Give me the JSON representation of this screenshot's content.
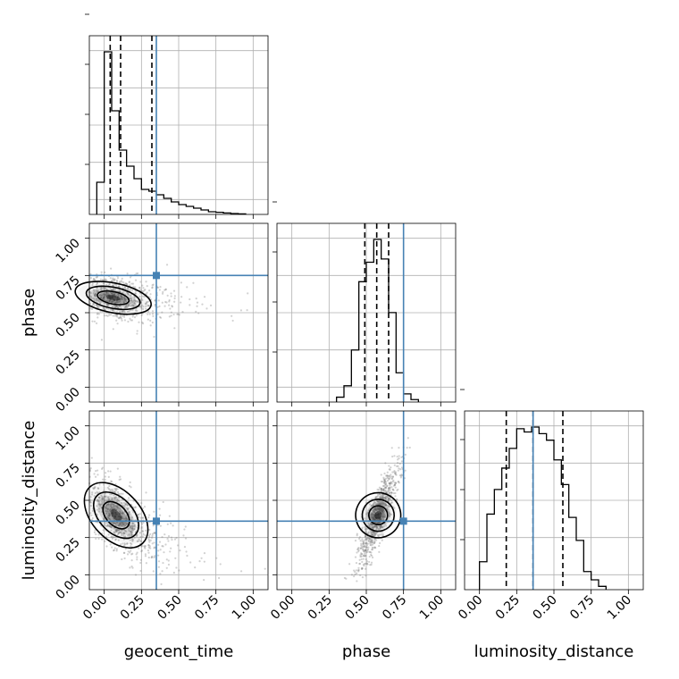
{
  "chart_data": {
    "type": "corner",
    "parameters": [
      "geocent_time",
      "phase",
      "luminosity_distance"
    ],
    "axis_range": [
      -0.1,
      1.1
    ],
    "ticks": [
      0.0,
      0.25,
      0.5,
      0.75,
      1.0
    ],
    "tick_labels": [
      "0.00",
      "0.25",
      "0.50",
      "0.75",
      "1.00"
    ],
    "grid": true,
    "truth": {
      "geocent_time": 0.35,
      "phase": 0.75,
      "luminosity_distance": 0.36
    },
    "colors": {
      "truth": "#4682b4",
      "hist": "#000000",
      "grid": "#b0b0b0",
      "points": "#7f7f7f"
    },
    "histograms": {
      "geocent_time": {
        "bin_edges": [
          -0.05,
          0.0,
          0.05,
          0.1,
          0.15,
          0.2,
          0.25,
          0.3,
          0.35,
          0.4,
          0.45,
          0.5,
          0.55,
          0.6,
          0.65,
          0.7,
          0.75,
          0.8,
          0.85,
          0.9,
          0.95
        ],
        "counts": [
          0.18,
          0.91,
          0.58,
          0.36,
          0.27,
          0.2,
          0.14,
          0.13,
          0.11,
          0.09,
          0.07,
          0.055,
          0.045,
          0.035,
          0.025,
          0.015,
          0.012,
          0.008,
          0.005,
          0.003
        ],
        "quantiles": [
          0.04,
          0.11,
          0.32
        ]
      },
      "phase": {
        "bin_edges": [
          0.3,
          0.35,
          0.4,
          0.45,
          0.5,
          0.55,
          0.6,
          0.65,
          0.7,
          0.75,
          0.8,
          0.85
        ],
        "counts": [
          0.03,
          0.1,
          0.32,
          0.74,
          0.86,
          1.0,
          0.88,
          0.55,
          0.18,
          0.05,
          0.015
        ],
        "quantiles": [
          0.49,
          0.57,
          0.65
        ]
      },
      "luminosity_distance": {
        "bin_edges": [
          0.0,
          0.05,
          0.1,
          0.15,
          0.2,
          0.25,
          0.3,
          0.35,
          0.4,
          0.45,
          0.5,
          0.55,
          0.6,
          0.65,
          0.7,
          0.75,
          0.8,
          0.85
        ],
        "counts": [
          0.17,
          0.46,
          0.61,
          0.74,
          0.86,
          0.98,
          0.96,
          0.99,
          0.95,
          0.91,
          0.79,
          0.64,
          0.44,
          0.3,
          0.11,
          0.06,
          0.02
        ],
        "quantiles": [
          0.18,
          0.36,
          0.56
        ]
      }
    },
    "scatter_2d": [
      {
        "x": "geocent_time",
        "y": "phase",
        "center": [
          0.06,
          0.6
        ],
        "spread": [
          0.12,
          0.08
        ],
        "correlation": -0.3
      },
      {
        "x": "geocent_time",
        "y": "luminosity_distance",
        "center": [
          0.08,
          0.4
        ],
        "spread": [
          0.12,
          0.17
        ],
        "correlation": -0.75
      },
      {
        "x": "phase",
        "y": "luminosity_distance",
        "center": [
          0.58,
          0.4
        ],
        "spread": [
          0.07,
          0.17
        ],
        "correlation": 0.85
      }
    ]
  }
}
